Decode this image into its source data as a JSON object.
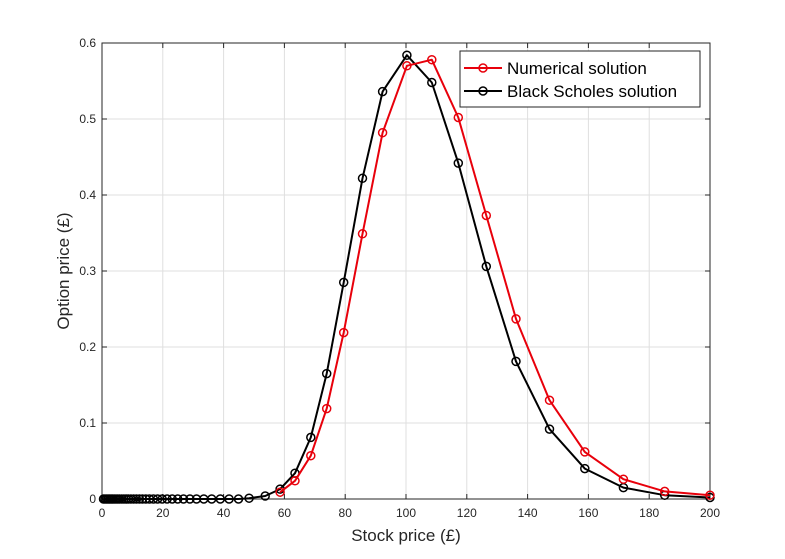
{
  "chart_data": {
    "type": "line",
    "title": "",
    "xlabel": "Stock price (£)",
    "ylabel": "Option price (£)",
    "xlim": [
      0,
      200
    ],
    "ylim": [
      0,
      0.6
    ],
    "xticks": [
      0,
      20,
      40,
      60,
      80,
      100,
      120,
      140,
      160,
      180,
      200
    ],
    "yticks": [
      0,
      0.1,
      0.2,
      0.3,
      0.4,
      0.5,
      0.6
    ],
    "grid": true,
    "legend_position": "top-right",
    "series": [
      {
        "name": "Numerical solution",
        "color": "#e8000b",
        "marker": "circle",
        "x": [
          58.6,
          63.5,
          68.7,
          73.9,
          79.5,
          85.7,
          92.3,
          100.3,
          108.5,
          117.2,
          126.4,
          136.2,
          147.2,
          158.8,
          171.5,
          185.1,
          200
        ],
        "y": [
          0.009,
          0.024,
          0.057,
          0.119,
          0.219,
          0.349,
          0.482,
          0.57,
          0.578,
          0.502,
          0.373,
          0.237,
          0.13,
          0.062,
          0.026,
          0.01,
          0.005
        ]
      },
      {
        "name": "Black Scholes solution",
        "color": "#000000",
        "marker": "circle",
        "x": [
          0.5,
          1.0,
          1.5,
          2.0,
          2.5,
          3.0,
          3.5,
          4.0,
          4.6,
          5.2,
          5.8,
          6.5,
          7.2,
          7.9,
          8.7,
          9.5,
          10.4,
          11.3,
          12.3,
          13.3,
          14.4,
          15.6,
          16.9,
          18.3,
          19.8,
          21.4,
          23.1,
          24.9,
          26.8,
          28.9,
          31.1,
          33.5,
          36.1,
          38.9,
          41.8,
          44.9,
          48.4,
          53.7,
          58.6,
          63.5,
          68.7,
          73.9,
          79.5,
          85.7,
          92.3,
          100.3,
          108.5,
          117.2,
          126.4,
          136.2,
          147.2,
          158.8,
          171.5,
          185.1,
          200
        ],
        "y": [
          0,
          0,
          0,
          0,
          0,
          0,
          0,
          0,
          0,
          0,
          0,
          0,
          0,
          0,
          0,
          0,
          0,
          0,
          0,
          0,
          0,
          0,
          0,
          0,
          0,
          0,
          0,
          0,
          0,
          0,
          0,
          0,
          0,
          0,
          0,
          0,
          0.001,
          0.004,
          0.013,
          0.034,
          0.081,
          0.165,
          0.285,
          0.422,
          0.536,
          0.584,
          0.548,
          0.442,
          0.306,
          0.181,
          0.092,
          0.04,
          0.015,
          0.005,
          0.002
        ]
      }
    ]
  }
}
